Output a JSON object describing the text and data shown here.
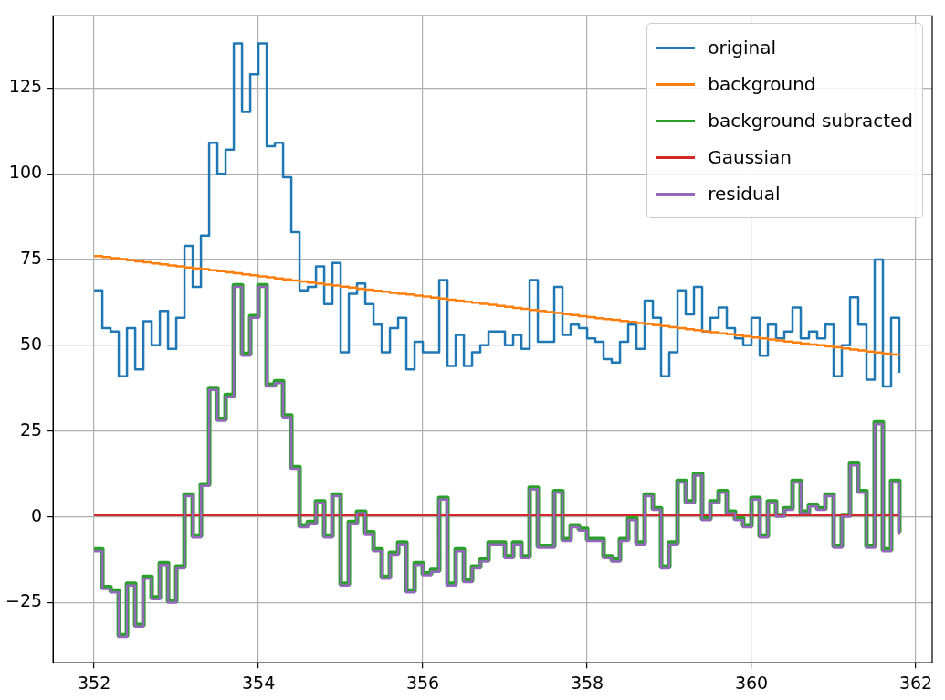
{
  "chart_data": {
    "type": "step",
    "x": [
      352,
      352.1,
      352.2,
      352.3,
      352.4,
      352.5,
      352.6,
      352.7,
      352.8,
      352.9,
      353,
      353.1,
      353.2,
      353.3,
      353.4,
      353.5,
      353.6,
      353.7,
      353.8,
      353.9,
      354,
      354.1,
      354.2,
      354.3,
      354.4,
      354.5,
      354.6,
      354.7,
      354.8,
      354.9,
      355,
      355.1,
      355.2,
      355.3,
      355.4,
      355.5,
      355.6,
      355.7,
      355.8,
      355.9,
      356,
      356.1,
      356.2,
      356.3,
      356.4,
      356.5,
      356.6,
      356.7,
      356.8,
      356.9,
      357,
      357.1,
      357.2,
      357.3,
      357.4,
      357.5,
      357.6,
      357.7,
      357.8,
      357.9,
      358,
      358.1,
      358.2,
      358.3,
      358.4,
      358.5,
      358.6,
      358.7,
      358.8,
      358.9,
      359,
      359.1,
      359.2,
      359.3,
      359.4,
      359.5,
      359.6,
      359.7,
      359.8,
      359.9,
      360,
      360.1,
      360.2,
      360.3,
      360.4,
      360.5,
      360.6,
      360.7,
      360.8,
      360.9,
      361,
      361.1,
      361.2,
      361.3,
      361.4,
      361.5,
      361.6,
      361.7,
      361.8
    ],
    "series": [
      {
        "name": "original",
        "color": "#1f77b4",
        "values": [
          66,
          55,
          54,
          41,
          55,
          43,
          57,
          50,
          60,
          49,
          58,
          79,
          67,
          82,
          109,
          100,
          107,
          138,
          118,
          129,
          138,
          108,
          109,
          99,
          83,
          66,
          67,
          73,
          62,
          74,
          48,
          65,
          68,
          62,
          56,
          48,
          55,
          58,
          43,
          51,
          48,
          48,
          69,
          44,
          53,
          44,
          48,
          50,
          54,
          54,
          50,
          53,
          49,
          69,
          51,
          51,
          67,
          53,
          56,
          55,
          52,
          51,
          46,
          45,
          51,
          56,
          49,
          63,
          58,
          41,
          48,
          66,
          59,
          67,
          54,
          58,
          61,
          55,
          52,
          50,
          58,
          47,
          56,
          52,
          54,
          61,
          52,
          54,
          52,
          56,
          41,
          50,
          64,
          56,
          40,
          75,
          38,
          58,
          42
        ]
      },
      {
        "name": "background",
        "color": "#ff7f0e",
        "values": [
          76.0,
          75.7,
          75.4,
          75.1,
          74.8,
          74.5,
          74.2,
          73.9,
          73.6,
          73.3,
          73.0,
          72.7,
          72.4,
          72.2,
          71.9,
          71.6,
          71.3,
          71.0,
          70.7,
          70.4,
          70.1,
          69.8,
          69.5,
          69.2,
          68.9,
          68.6,
          68.3,
          68.0,
          67.7,
          67.4,
          67.1,
          66.8,
          66.5,
          66.2,
          65.9,
          65.6,
          65.3,
          65.0,
          64.8,
          64.5,
          64.2,
          63.9,
          63.6,
          63.3,
          63.0,
          62.7,
          62.4,
          62.1,
          61.8,
          61.5,
          61.2,
          60.9,
          60.6,
          60.3,
          60.0,
          59.7,
          59.4,
          59.1,
          58.8,
          58.5,
          58.2,
          57.9,
          57.6,
          57.4,
          57.1,
          56.8,
          56.5,
          56.2,
          55.9,
          55.6,
          55.3,
          55.0,
          54.7,
          54.4,
          54.1,
          53.8,
          53.5,
          53.2,
          52.9,
          52.6,
          52.3,
          52.0,
          51.7,
          51.4,
          51.1,
          50.8,
          50.5,
          50.2,
          50.0,
          49.7,
          49.4,
          49.1,
          48.8,
          48.5,
          48.2,
          47.9,
          47.6,
          47.3,
          47.0
        ]
      },
      {
        "name": "background subracted",
        "color": "#2ca02c",
        "values": [
          -9.5,
          -20.5,
          -21.5,
          -34.5,
          -19.5,
          -31.5,
          -17.5,
          -23.5,
          -13.5,
          -24.5,
          -14.5,
          6.5,
          -5.5,
          9.5,
          37.5,
          28.5,
          35.5,
          67.5,
          47.5,
          58.5,
          67.5,
          38.5,
          39.5,
          29.5,
          14.5,
          -2.5,
          -1.5,
          4.5,
          -5.5,
          6.5,
          -19.5,
          -1.5,
          1.5,
          -4.5,
          -9.5,
          -17.5,
          -10.5,
          -7.5,
          -21.5,
          -13.5,
          -16.5,
          -15.5,
          5.5,
          -19.5,
          -9.5,
          -18.5,
          -14.5,
          -12.5,
          -7.5,
          -7.5,
          -11.5,
          -7.5,
          -11.5,
          8.5,
          -8.5,
          -8.5,
          7.5,
          -6.5,
          -2.5,
          -3.5,
          -6.5,
          -6.5,
          -11.5,
          -12.5,
          -6.5,
          -0.5,
          -7.5,
          6.5,
          2.5,
          -14.5,
          -7.5,
          10.5,
          4.5,
          12.5,
          -0.5,
          4.5,
          7.5,
          1.5,
          -0.5,
          -2.5,
          5.5,
          -5.5,
          4.5,
          0.5,
          2.5,
          10.5,
          1.5,
          3.5,
          2.5,
          6.5,
          -8.5,
          0.5,
          15.5,
          7.5,
          -8.5,
          27.5,
          -9.5,
          10.5,
          -4.5
        ]
      },
      {
        "name": "Gaussian",
        "color": "#d62728",
        "values": [
          0.5,
          0.5,
          0.5,
          0.5,
          0.5,
          0.5,
          0.5,
          0.5,
          0.5,
          0.5,
          0.5,
          0.5,
          0.5,
          0.5,
          0.5,
          0.5,
          0.5,
          0.5,
          0.5,
          0.5,
          0.5,
          0.5,
          0.5,
          0.5,
          0.5,
          0.5,
          0.5,
          0.5,
          0.5,
          0.5,
          0.5,
          0.5,
          0.5,
          0.5,
          0.5,
          0.5,
          0.5,
          0.5,
          0.5,
          0.5,
          0.5,
          0.5,
          0.5,
          0.5,
          0.5,
          0.5,
          0.5,
          0.5,
          0.5,
          0.5,
          0.5,
          0.5,
          0.5,
          0.5,
          0.5,
          0.5,
          0.5,
          0.5,
          0.5,
          0.5,
          0.5,
          0.5,
          0.5,
          0.5,
          0.5,
          0.5,
          0.5,
          0.5,
          0.5,
          0.5,
          0.5,
          0.5,
          0.5,
          0.5,
          0.5,
          0.5,
          0.5,
          0.5,
          0.5,
          0.5,
          0.5,
          0.5,
          0.5,
          0.5,
          0.5,
          0.5,
          0.5,
          0.5,
          0.5,
          0.5,
          0.5,
          0.5,
          0.5,
          0.5,
          0.5,
          0.5,
          0.5,
          0.5,
          0.5
        ]
      },
      {
        "name": "residual",
        "color": "#9467bd",
        "values": [
          -10,
          -21,
          -22,
          -35,
          -20,
          -32,
          -18,
          -24,
          -14,
          -25,
          -15,
          6,
          -6,
          9,
          37,
          28,
          35,
          67,
          47,
          58,
          67,
          38,
          39,
          29,
          14,
          -3,
          -2,
          4,
          -6,
          6,
          -20,
          -2,
          1,
          -5,
          -10,
          -18,
          -11,
          -8,
          -22,
          -14,
          -17,
          -16,
          5,
          -20,
          -10,
          -19,
          -15,
          -13,
          -8,
          -8,
          -12,
          -8,
          -12,
          8,
          -9,
          -9,
          7,
          -7,
          -3,
          -4,
          -7,
          -7,
          -12,
          -13,
          -7,
          -1,
          -8,
          6,
          2,
          -15,
          -8,
          10,
          4,
          12,
          -1,
          4,
          7,
          1,
          -1,
          -3,
          5,
          -6,
          4,
          0,
          2,
          10,
          1,
          3,
          2,
          6,
          -9,
          0,
          15,
          7,
          -9,
          27,
          -10,
          10,
          -5
        ]
      }
    ],
    "xlim": [
      351.5,
      362.2
    ],
    "xticks": [
      352,
      354,
      356,
      358,
      360,
      362
    ],
    "ylim": [
      -42.5,
      146
    ],
    "yticks": [
      {
        "value": -25,
        "label": "−25"
      },
      0,
      25,
      50,
      75,
      100,
      125
    ],
    "grid": true,
    "legend": "top right"
  }
}
